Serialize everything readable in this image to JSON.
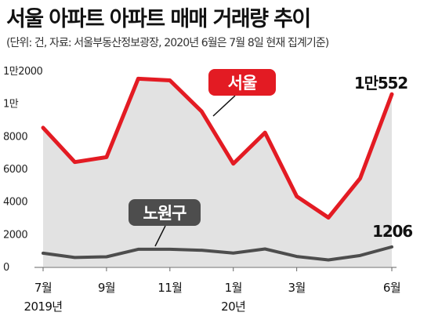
{
  "header": {
    "title": "서울 아파트 아파트 매매 거래량 추이",
    "subtitle": "(단위: 건, 자료: 서울부동산정보광장, 2020년 6월은 7월 8일 현재 집계기준)"
  },
  "chart_data": {
    "type": "line",
    "x": [
      "2019-07",
      "2019-08",
      "2019-09",
      "2019-10",
      "2019-11",
      "2019-12",
      "2020-01",
      "2020-02",
      "2020-03",
      "2020-04",
      "2020-05",
      "2020-06"
    ],
    "x_tick_labels": [
      {
        "index": 0,
        "label": "7월"
      },
      {
        "index": 2,
        "label": "9월"
      },
      {
        "index": 4,
        "label": "11월"
      },
      {
        "index": 6,
        "label": "1월"
      },
      {
        "index": 8,
        "label": "3월"
      },
      {
        "index": 11,
        "label": "6월"
      }
    ],
    "year_labels": [
      {
        "index": 0,
        "label": "2019년"
      },
      {
        "index": 6,
        "label": "20년"
      }
    ],
    "y_ticks": [
      {
        "value": 0,
        "label": "0"
      },
      {
        "value": 2000,
        "label": "2000"
      },
      {
        "value": 4000,
        "label": "4000"
      },
      {
        "value": 6000,
        "label": "6000"
      },
      {
        "value": 8000,
        "label": "8000"
      },
      {
        "value": 10000,
        "label": "1만"
      },
      {
        "value": 12000,
        "label": "1만2000"
      }
    ],
    "ylim": [
      0,
      12000
    ],
    "grid": false,
    "series": [
      {
        "name": "서울",
        "color": "#e31b23",
        "fill": "#e2e2e2",
        "values": [
          8500,
          6400,
          6700,
          11500,
          11400,
          9500,
          6300,
          8200,
          4300,
          3000,
          5400,
          10552
        ],
        "end_label": "1만552"
      },
      {
        "name": "노원구",
        "color": "#4d4d4d",
        "values": [
          820,
          560,
          600,
          1060,
          1060,
          1000,
          830,
          1080,
          620,
          410,
          680,
          1206
        ],
        "end_label": "1206"
      }
    ]
  },
  "colors": {
    "seoul_badge": "#e31b23",
    "nowon_badge": "#4d4d4d"
  }
}
